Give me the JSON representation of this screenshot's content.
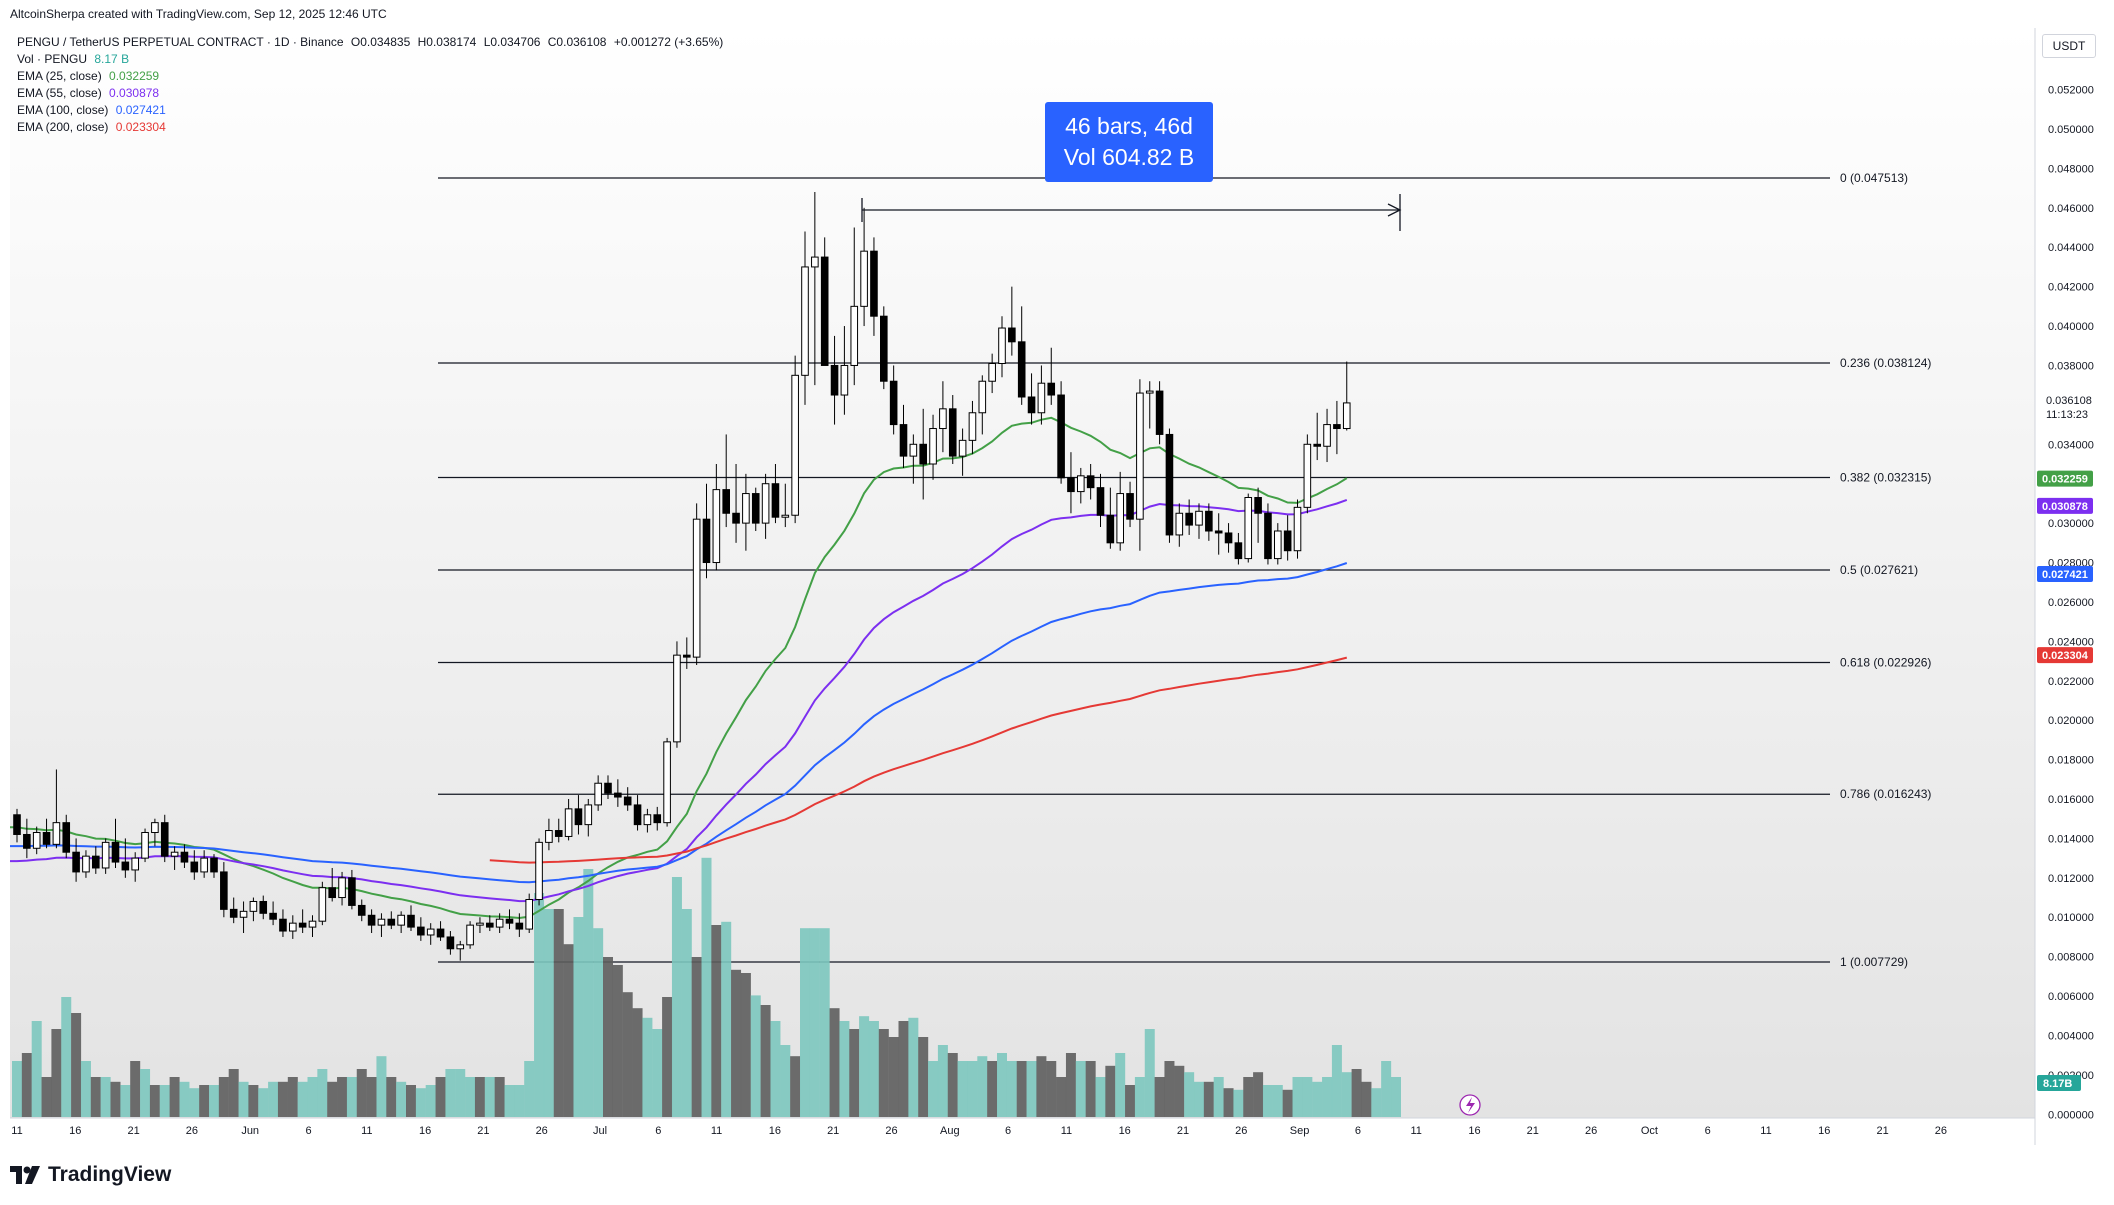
{
  "header": {
    "credit": "AltcoinSherpa created with TradingView.com, Sep 12, 2025 12:46 UTC"
  },
  "legend": {
    "symbol": "PENGU / TetherUS PERPETUAL CONTRACT · 1D · Binance",
    "open": "O0.034835",
    "high": "H0.038174",
    "low": "L0.034706",
    "close": "C0.036108",
    "change": "+0.001272 (+3.65%)",
    "volume_label": "Vol · PENGU",
    "volume_value": "8.17 B",
    "ema25_label": "EMA (25, close)",
    "ema25_value": "0.032259",
    "ema55_label": "EMA (55, close)",
    "ema55_value": "0.030878",
    "ema100_label": "EMA (100, close)",
    "ema100_value": "0.027421",
    "ema200_label": "EMA (200, close)",
    "ema200_value": "0.023304"
  },
  "measure": {
    "line1": "46 bars, 46d",
    "line2": "Vol 604.82 B"
  },
  "price_axis": {
    "unit": "USDT",
    "ticks": [
      "0.052000",
      "0.050000",
      "0.048000",
      "0.046000",
      "0.044000",
      "0.042000",
      "0.040000",
      "0.038000",
      "0.034000",
      "0.030000",
      "0.028000",
      "0.026000",
      "0.024000",
      "0.022000",
      "0.020000",
      "0.018000",
      "0.016000",
      "0.014000",
      "0.012000",
      "0.010000",
      "0.008000",
      "0.006000",
      "0.004000",
      "0.002000",
      "0.000000"
    ],
    "last_price": "0.036108",
    "countdown": "11:13:23",
    "ema_badges": [
      {
        "value": "0.032259",
        "color": "#43a047"
      },
      {
        "value": "0.030878",
        "color": "#7c2ff0"
      },
      {
        "value": "0.027421",
        "color": "#2962ff"
      },
      {
        "value": "0.023304",
        "color": "#e53935"
      }
    ],
    "volume_badge": "8.17B"
  },
  "time_axis": {
    "labels": [
      "11",
      "16",
      "21",
      "26",
      "Jun",
      "6",
      "11",
      "16",
      "21",
      "26",
      "Jul",
      "6",
      "11",
      "16",
      "21",
      "26",
      "Aug",
      "6",
      "11",
      "16",
      "21",
      "26",
      "Sep",
      "6",
      "11",
      "16",
      "21",
      "26",
      "Oct",
      "6",
      "11",
      "16",
      "21",
      "26"
    ]
  },
  "fib": [
    {
      "label": "0 (0.047513)",
      "price": 0.047513
    },
    {
      "label": "0.236 (0.038124)",
      "price": 0.038124
    },
    {
      "label": "0.382 (0.032315)",
      "price": 0.032315
    },
    {
      "label": "0.5 (0.027621)",
      "price": 0.027621
    },
    {
      "label": "0.618 (0.022926)",
      "price": 0.022926
    },
    {
      "label": "0.786 (0.016243)",
      "price": 0.016243
    },
    {
      "label": "1 (0.007729)",
      "price": 0.007729
    }
  ],
  "colors": {
    "up": "#ffffff",
    "down": "#000000",
    "vol_up": "#7cc6be",
    "vol_down": "#5d5d5d",
    "ema25": "#43a047",
    "ema55": "#7c2ff0",
    "ema100": "#2962ff",
    "ema200": "#e53935"
  },
  "footer": {
    "brand": "TradingView"
  },
  "chart_data": {
    "type": "candlestick",
    "title": "PENGU / TetherUS PERPETUAL CONTRACT · 1D · Binance",
    "ylim": [
      0,
      0.053
    ],
    "candles": [
      [
        0.0152,
        0.0155,
        0.0138,
        0.0142
      ],
      [
        0.0142,
        0.015,
        0.013,
        0.0135
      ],
      [
        0.0135,
        0.0146,
        0.0132,
        0.0143
      ],
      [
        0.0143,
        0.015,
        0.0135,
        0.0137
      ],
      [
        0.0137,
        0.0175,
        0.0135,
        0.0148
      ],
      [
        0.0148,
        0.0152,
        0.013,
        0.0133
      ],
      [
        0.0133,
        0.014,
        0.0118,
        0.0123
      ],
      [
        0.0123,
        0.0134,
        0.012,
        0.0131
      ],
      [
        0.0131,
        0.0136,
        0.0122,
        0.0125
      ],
      [
        0.0125,
        0.014,
        0.0122,
        0.0138
      ],
      [
        0.0138,
        0.015,
        0.0125,
        0.0128
      ],
      [
        0.0128,
        0.014,
        0.012,
        0.0124
      ],
      [
        0.0124,
        0.0133,
        0.0118,
        0.013
      ],
      [
        0.013,
        0.0145,
        0.0128,
        0.0143
      ],
      [
        0.0143,
        0.015,
        0.0136,
        0.0148
      ],
      [
        0.0148,
        0.0152,
        0.0128,
        0.0131
      ],
      [
        0.0131,
        0.0136,
        0.0124,
        0.0133
      ],
      [
        0.0133,
        0.0137,
        0.0125,
        0.0128
      ],
      [
        0.0128,
        0.0134,
        0.0119,
        0.0123
      ],
      [
        0.0123,
        0.0134,
        0.012,
        0.013
      ],
      [
        0.013,
        0.0132,
        0.012,
        0.0123
      ],
      [
        0.0123,
        0.0128,
        0.01,
        0.0104
      ],
      [
        0.0104,
        0.011,
        0.0097,
        0.01
      ],
      [
        0.01,
        0.0108,
        0.0092,
        0.0103
      ],
      [
        0.0103,
        0.011,
        0.0098,
        0.0108
      ],
      [
        0.0108,
        0.0111,
        0.0099,
        0.0102
      ],
      [
        0.0102,
        0.0108,
        0.0096,
        0.0099
      ],
      [
        0.0099,
        0.0104,
        0.009,
        0.0093
      ],
      [
        0.0093,
        0.0101,
        0.0089,
        0.0097
      ],
      [
        0.0097,
        0.0104,
        0.0092,
        0.0095
      ],
      [
        0.0095,
        0.0101,
        0.009,
        0.0098
      ],
      [
        0.0098,
        0.0118,
        0.0096,
        0.0115
      ],
      [
        0.0115,
        0.0125,
        0.0108,
        0.011
      ],
      [
        0.011,
        0.0123,
        0.0106,
        0.012
      ],
      [
        0.012,
        0.0124,
        0.0104,
        0.0106
      ],
      [
        0.0106,
        0.0109,
        0.0098,
        0.0101
      ],
      [
        0.0101,
        0.0104,
        0.0092,
        0.0096
      ],
      [
        0.0096,
        0.0102,
        0.009,
        0.0099
      ],
      [
        0.0099,
        0.0103,
        0.0094,
        0.0096
      ],
      [
        0.0096,
        0.0103,
        0.0092,
        0.0101
      ],
      [
        0.0101,
        0.0106,
        0.0093,
        0.0095
      ],
      [
        0.0095,
        0.01,
        0.0088,
        0.0091
      ],
      [
        0.0091,
        0.0097,
        0.0086,
        0.0094
      ],
      [
        0.0094,
        0.0098,
        0.0088,
        0.009
      ],
      [
        0.009,
        0.0093,
        0.0081,
        0.0084
      ],
      [
        0.0084,
        0.0088,
        0.0078,
        0.0086
      ],
      [
        0.0086,
        0.0098,
        0.0084,
        0.0096
      ],
      [
        0.0096,
        0.01,
        0.0092,
        0.0097
      ],
      [
        0.0097,
        0.0101,
        0.0093,
        0.0095
      ],
      [
        0.0095,
        0.0102,
        0.0092,
        0.0099
      ],
      [
        0.0099,
        0.0104,
        0.0094,
        0.0097
      ],
      [
        0.0097,
        0.0102,
        0.009,
        0.0094
      ],
      [
        0.0094,
        0.0112,
        0.0092,
        0.0109
      ],
      [
        0.0109,
        0.014,
        0.0106,
        0.0138
      ],
      [
        0.0138,
        0.015,
        0.0134,
        0.0144
      ],
      [
        0.0144,
        0.015,
        0.0138,
        0.0141
      ],
      [
        0.0141,
        0.016,
        0.0139,
        0.0155
      ],
      [
        0.0155,
        0.0162,
        0.0142,
        0.0147
      ],
      [
        0.0147,
        0.016,
        0.0141,
        0.0157
      ],
      [
        0.0157,
        0.0172,
        0.0154,
        0.0168
      ],
      [
        0.0168,
        0.0172,
        0.016,
        0.0163
      ],
      [
        0.0163,
        0.017,
        0.0156,
        0.0161
      ],
      [
        0.0161,
        0.0166,
        0.0154,
        0.0157
      ],
      [
        0.0157,
        0.0162,
        0.0144,
        0.0147
      ],
      [
        0.0147,
        0.0155,
        0.0143,
        0.0152
      ],
      [
        0.0152,
        0.0156,
        0.0144,
        0.0148
      ],
      [
        0.0148,
        0.0191,
        0.0146,
        0.0189
      ],
      [
        0.0189,
        0.024,
        0.0186,
        0.0233
      ],
      [
        0.0233,
        0.0242,
        0.0226,
        0.0232
      ],
      [
        0.0232,
        0.031,
        0.0228,
        0.0302
      ],
      [
        0.0302,
        0.032,
        0.0272,
        0.028
      ],
      [
        0.028,
        0.033,
        0.0276,
        0.0317
      ],
      [
        0.0317,
        0.0345,
        0.0298,
        0.0305
      ],
      [
        0.0305,
        0.033,
        0.029,
        0.03
      ],
      [
        0.03,
        0.0325,
        0.0286,
        0.0315
      ],
      [
        0.0315,
        0.0318,
        0.0296,
        0.03
      ],
      [
        0.03,
        0.0325,
        0.0292,
        0.032
      ],
      [
        0.032,
        0.033,
        0.03,
        0.0303
      ],
      [
        0.0303,
        0.032,
        0.0298,
        0.0304
      ],
      [
        0.0304,
        0.0385,
        0.03,
        0.0375
      ],
      [
        0.0375,
        0.0448,
        0.036,
        0.043
      ],
      [
        0.043,
        0.0468,
        0.037,
        0.0435
      ],
      [
        0.0435,
        0.0445,
        0.038,
        0.038
      ],
      [
        0.038,
        0.0395,
        0.035,
        0.0365
      ],
      [
        0.0365,
        0.04,
        0.0355,
        0.038
      ],
      [
        0.038,
        0.045,
        0.037,
        0.041
      ],
      [
        0.041,
        0.046,
        0.04,
        0.0438
      ],
      [
        0.0438,
        0.0445,
        0.0395,
        0.0405
      ],
      [
        0.0405,
        0.041,
        0.0368,
        0.0372
      ],
      [
        0.0372,
        0.038,
        0.0345,
        0.035
      ],
      [
        0.035,
        0.036,
        0.0328,
        0.0334
      ],
      [
        0.0334,
        0.0345,
        0.032,
        0.034
      ],
      [
        0.034,
        0.0358,
        0.0312,
        0.033
      ],
      [
        0.033,
        0.0355,
        0.0322,
        0.0348
      ],
      [
        0.0348,
        0.0372,
        0.0336,
        0.0358
      ],
      [
        0.0358,
        0.0365,
        0.033,
        0.0334
      ],
      [
        0.0334,
        0.0348,
        0.0324,
        0.0342
      ],
      [
        0.0342,
        0.0362,
        0.0335,
        0.0356
      ],
      [
        0.0356,
        0.0375,
        0.0345,
        0.0372
      ],
      [
        0.0372,
        0.0386,
        0.0366,
        0.0381
      ],
      [
        0.0381,
        0.0405,
        0.0374,
        0.0399
      ],
      [
        0.0399,
        0.042,
        0.0385,
        0.0392
      ],
      [
        0.0392,
        0.041,
        0.036,
        0.0364
      ],
      [
        0.0364,
        0.0376,
        0.035,
        0.0356
      ],
      [
        0.0356,
        0.038,
        0.035,
        0.0371
      ],
      [
        0.0371,
        0.0389,
        0.036,
        0.0365
      ],
      [
        0.0365,
        0.0372,
        0.032,
        0.0323
      ],
      [
        0.0323,
        0.0336,
        0.0305,
        0.0316
      ],
      [
        0.0316,
        0.0328,
        0.031,
        0.0324
      ],
      [
        0.0324,
        0.033,
        0.0312,
        0.0318
      ],
      [
        0.0318,
        0.0325,
        0.0298,
        0.0304
      ],
      [
        0.0304,
        0.0318,
        0.0287,
        0.029
      ],
      [
        0.029,
        0.0326,
        0.0286,
        0.0315
      ],
      [
        0.0315,
        0.0321,
        0.0298,
        0.0302
      ],
      [
        0.0302,
        0.0373,
        0.0286,
        0.0366
      ],
      [
        0.0366,
        0.0372,
        0.0348,
        0.0367
      ],
      [
        0.0367,
        0.0372,
        0.034,
        0.0345
      ],
      [
        0.0345,
        0.0348,
        0.029,
        0.0294
      ],
      [
        0.0294,
        0.031,
        0.0288,
        0.0305
      ],
      [
        0.0305,
        0.0312,
        0.0294,
        0.0299
      ],
      [
        0.0299,
        0.031,
        0.0292,
        0.0306
      ],
      [
        0.0306,
        0.031,
        0.0291,
        0.0296
      ],
      [
        0.0296,
        0.0305,
        0.0284,
        0.0295
      ],
      [
        0.0295,
        0.03,
        0.0285,
        0.029
      ],
      [
        0.029,
        0.0295,
        0.0279,
        0.0282
      ],
      [
        0.0282,
        0.0315,
        0.028,
        0.0313
      ],
      [
        0.0313,
        0.0318,
        0.029,
        0.0305
      ],
      [
        0.0305,
        0.031,
        0.0279,
        0.0282
      ],
      [
        0.0282,
        0.03,
        0.0279,
        0.0296
      ],
      [
        0.0296,
        0.0304,
        0.0281,
        0.0286
      ],
      [
        0.0286,
        0.0312,
        0.0282,
        0.0308
      ],
      [
        0.0308,
        0.0345,
        0.0305,
        0.034
      ],
      [
        0.034,
        0.0356,
        0.0332,
        0.0339
      ],
      [
        0.0339,
        0.0358,
        0.0331,
        0.035
      ],
      [
        0.035,
        0.0362,
        0.0335,
        0.0348
      ],
      [
        0.0348,
        0.0382,
        0.0347,
        0.0361
      ]
    ],
    "volume": [
      [
        35,
        1
      ],
      [
        40,
        0
      ],
      [
        60,
        1
      ],
      [
        25,
        0
      ],
      [
        55,
        0
      ],
      [
        75,
        1
      ],
      [
        65,
        0
      ],
      [
        35,
        1
      ],
      [
        25,
        0
      ],
      [
        25,
        1
      ],
      [
        22,
        0
      ],
      [
        20,
        1
      ],
      [
        35,
        0
      ],
      [
        30,
        1
      ],
      [
        20,
        0
      ],
      [
        20,
        1
      ],
      [
        25,
        0
      ],
      [
        22,
        1
      ],
      [
        18,
        1
      ],
      [
        20,
        0
      ],
      [
        20,
        1
      ],
      [
        25,
        0
      ],
      [
        30,
        0
      ],
      [
        22,
        1
      ],
      [
        20,
        0
      ],
      [
        18,
        1
      ],
      [
        22,
        1
      ],
      [
        22,
        0
      ],
      [
        25,
        0
      ],
      [
        22,
        1
      ],
      [
        25,
        1
      ],
      [
        30,
        1
      ],
      [
        22,
        0
      ],
      [
        25,
        0
      ],
      [
        25,
        1
      ],
      [
        30,
        0
      ],
      [
        25,
        0
      ],
      [
        38,
        1
      ],
      [
        25,
        0
      ],
      [
        22,
        1
      ],
      [
        20,
        0
      ],
      [
        18,
        1
      ],
      [
        20,
        1
      ],
      [
        25,
        0
      ],
      [
        30,
        1
      ],
      [
        30,
        1
      ],
      [
        25,
        1
      ],
      [
        25,
        0
      ],
      [
        25,
        1
      ],
      [
        25,
        0
      ],
      [
        20,
        1
      ],
      [
        20,
        1
      ],
      [
        35,
        1
      ],
      [
        140,
        1
      ],
      [
        130,
        1
      ],
      [
        130,
        0
      ],
      [
        108,
        0
      ],
      [
        125,
        1
      ],
      [
        155,
        1
      ],
      [
        118,
        1
      ],
      [
        100,
        0
      ],
      [
        95,
        0
      ],
      [
        78,
        0
      ],
      [
        68,
        0
      ],
      [
        62,
        1
      ],
      [
        55,
        1
      ],
      [
        75,
        0
      ],
      [
        150,
        1
      ],
      [
        130,
        1
      ],
      [
        100,
        0
      ],
      [
        162,
        1
      ],
      [
        120,
        0
      ],
      [
        122,
        1
      ],
      [
        92,
        0
      ],
      [
        90,
        0
      ],
      [
        76,
        1
      ],
      [
        70,
        0
      ],
      [
        60,
        1
      ],
      [
        45,
        1
      ],
      [
        38,
        0
      ],
      [
        118,
        1
      ],
      [
        118,
        1
      ],
      [
        118,
        1
      ],
      [
        68,
        0
      ],
      [
        60,
        1
      ],
      [
        55,
        0
      ],
      [
        63,
        1
      ],
      [
        60,
        1
      ],
      [
        55,
        0
      ],
      [
        50,
        0
      ],
      [
        60,
        0
      ],
      [
        62,
        1
      ],
      [
        50,
        0
      ],
      [
        35,
        1
      ],
      [
        45,
        1
      ],
      [
        40,
        0
      ],
      [
        35,
        1
      ],
      [
        35,
        1
      ],
      [
        38,
        1
      ],
      [
        35,
        0
      ],
      [
        40,
        1
      ],
      [
        35,
        1
      ],
      [
        35,
        0
      ],
      [
        35,
        1
      ],
      [
        38,
        0
      ],
      [
        35,
        0
      ],
      [
        25,
        0
      ],
      [
        40,
        0
      ],
      [
        35,
        1
      ],
      [
        35,
        0
      ],
      [
        25,
        1
      ],
      [
        32,
        0
      ],
      [
        40,
        1
      ],
      [
        20,
        0
      ],
      [
        25,
        1
      ],
      [
        55,
        1
      ],
      [
        25,
        0
      ],
      [
        35,
        0
      ],
      [
        32,
        0
      ],
      [
        28,
        1
      ],
      [
        22,
        1
      ],
      [
        22,
        0
      ],
      [
        25,
        1
      ],
      [
        18,
        0
      ],
      [
        17,
        1
      ],
      [
        25,
        0
      ],
      [
        28,
        0
      ],
      [
        20,
        1
      ],
      [
        20,
        1
      ],
      [
        17,
        0
      ],
      [
        25,
        1
      ],
      [
        25,
        1
      ],
      [
        22,
        1
      ],
      [
        25,
        1
      ],
      [
        45,
        1
      ],
      [
        28,
        1
      ],
      [
        30,
        0
      ],
      [
        22,
        0
      ],
      [
        18,
        1
      ],
      [
        35,
        1
      ],
      [
        25,
        1
      ]
    ]
  }
}
